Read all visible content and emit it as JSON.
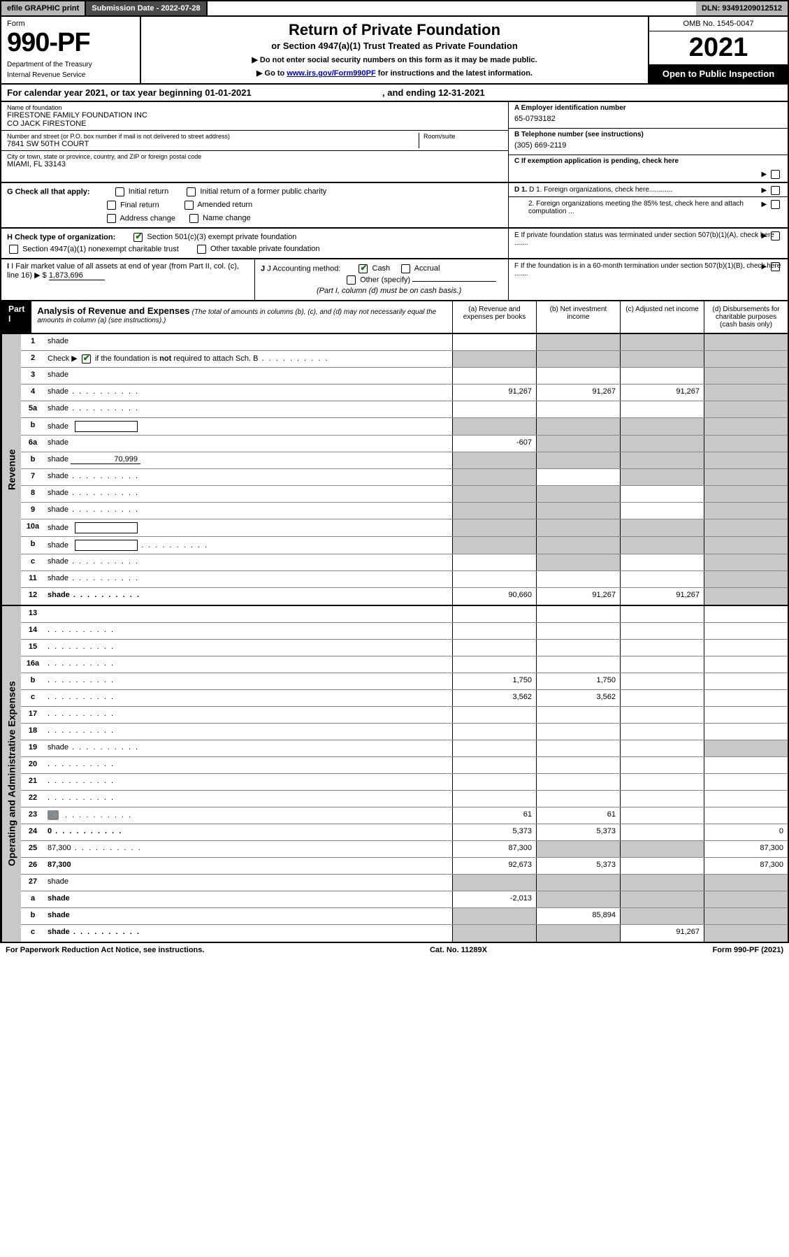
{
  "colors": {
    "black": "#000000",
    "white": "#ffffff",
    "grey_header": "#b8b8b8",
    "grey_dark": "#4a4a4a",
    "grey_shade": "#c8c8c8",
    "link": "#0000cc",
    "check_green": "#0a7a0a"
  },
  "topbar": {
    "efile": "efile GRAPHIC print",
    "submission": "Submission Date - 2022-07-28",
    "dln": "DLN: 93491209012512"
  },
  "header": {
    "form_label": "Form",
    "form_number": "990-PF",
    "dept1": "Department of the Treasury",
    "dept2": "Internal Revenue Service",
    "title": "Return of Private Foundation",
    "subtitle": "or Section 4947(a)(1) Trust Treated as Private Foundation",
    "note1": "▶ Do not enter social security numbers on this form as it may be made public.",
    "note2_pre": "▶ Go to ",
    "note2_link": "www.irs.gov/Form990PF",
    "note2_post": " for instructions and the latest information.",
    "omb": "OMB No. 1545-0047",
    "year": "2021",
    "open": "Open to Public Inspection"
  },
  "calyear": {
    "text_pre": "For calendar year 2021, or tax year beginning ",
    "begin": "01-01-2021",
    "mid": " , and ending ",
    "end": "12-31-2021"
  },
  "info": {
    "name_label": "Name of foundation",
    "name1": "FIRESTONE FAMILY FOUNDATION INC",
    "name2": "CO JACK FIRESTONE",
    "addr_label": "Number and street (or P.O. box number if mail is not delivered to street address)",
    "room_label": "Room/suite",
    "addr": "7841 SW 50TH COURT",
    "city_label": "City or town, state or province, country, and ZIP or foreign postal code",
    "city": "MIAMI, FL  33143",
    "a_label": "A Employer identification number",
    "a_val": "65-0793182",
    "b_label": "B Telephone number (see instructions)",
    "b_val": "(305) 669-2119",
    "c_label": "C If exemption application is pending, check here",
    "d1": "D 1. Foreign organizations, check here............",
    "d2": "2. Foreign organizations meeting the 85% test, check here and attach computation ...",
    "e": "E  If private foundation status was terminated under section 507(b)(1)(A), check here .......",
    "f": "F  If the foundation is in a 60-month termination under section 507(b)(1)(B), check here .......",
    "g_label": "G Check all that apply:",
    "g_opts": [
      "Initial return",
      "Initial return of a former public charity",
      "Final return",
      "Amended return",
      "Address change",
      "Name change"
    ],
    "h_label": "H Check type of organization:",
    "h_opt1": "Section 501(c)(3) exempt private foundation",
    "h_opt2": "Section 4947(a)(1) nonexempt charitable trust",
    "h_opt3": "Other taxable private foundation",
    "i_label": "I Fair market value of all assets at end of year (from Part II, col. (c), line 16) ▶ $",
    "i_val": "1,873,696",
    "j_label": "J Accounting method:",
    "j_cash": "Cash",
    "j_accrual": "Accrual",
    "j_other": "Other (specify)",
    "j_note": "(Part I, column (d) must be on cash basis.)"
  },
  "part1": {
    "label": "Part I",
    "title": "Analysis of Revenue and Expenses",
    "title_note": "(The total of amounts in columns (b), (c), and (d) may not necessarily equal the amounts in column (a) (see instructions).)",
    "col_a": "(a)  Revenue and expenses per books",
    "col_b": "(b)  Net investment income",
    "col_c": "(c)  Adjusted net income",
    "col_d": "(d)  Disbursements for charitable purposes (cash basis only)"
  },
  "sides": {
    "revenue": "Revenue",
    "expenses": "Operating and Administrative Expenses"
  },
  "lines": [
    {
      "n": "1",
      "d": "shade",
      "a": "",
      "b": "shade",
      "c": "shade"
    },
    {
      "n": "2",
      "d": "shade",
      "dots": true,
      "a": "shade",
      "b": "shade",
      "c": "shade",
      "bold_not": true
    },
    {
      "n": "3",
      "d": "shade",
      "a": "",
      "b": "",
      "c": ""
    },
    {
      "n": "4",
      "d": "shade",
      "dots": true,
      "a": "91,267",
      "b": "91,267",
      "c": "91,267"
    },
    {
      "n": "5a",
      "d": "shade",
      "dots": true,
      "a": "",
      "b": "",
      "c": ""
    },
    {
      "n": "b",
      "d": "shade",
      "box": true,
      "a": "shade",
      "b": "shade",
      "c": "shade"
    },
    {
      "n": "6a",
      "d": "shade",
      "a": "-607",
      "b": "shade",
      "c": "shade"
    },
    {
      "n": "b",
      "d": "shade",
      "inline_val": "70,999",
      "a": "shade",
      "b": "shade",
      "c": "shade"
    },
    {
      "n": "7",
      "d": "shade",
      "dots": true,
      "a": "shade",
      "b": "",
      "c": "shade"
    },
    {
      "n": "8",
      "d": "shade",
      "dots": true,
      "a": "shade",
      "b": "shade",
      "c": ""
    },
    {
      "n": "9",
      "d": "shade",
      "dots": true,
      "a": "shade",
      "b": "shade",
      "c": ""
    },
    {
      "n": "10a",
      "d": "shade",
      "box": true,
      "a": "shade",
      "b": "shade",
      "c": "shade"
    },
    {
      "n": "b",
      "d": "shade",
      "dots": true,
      "box": true,
      "a": "shade",
      "b": "shade",
      "c": "shade"
    },
    {
      "n": "c",
      "d": "shade",
      "dots": true,
      "a": "",
      "b": "shade",
      "c": ""
    },
    {
      "n": "11",
      "d": "shade",
      "dots": true,
      "a": "",
      "b": "",
      "c": ""
    },
    {
      "n": "12",
      "d": "shade",
      "dots": true,
      "bold": true,
      "a": "90,660",
      "b": "91,267",
      "c": "91,267"
    }
  ],
  "exp_lines": [
    {
      "n": "13",
      "d": "",
      "a": "",
      "b": "",
      "c": ""
    },
    {
      "n": "14",
      "d": "",
      "dots": true,
      "a": "",
      "b": "",
      "c": ""
    },
    {
      "n": "15",
      "d": "",
      "dots": true,
      "a": "",
      "b": "",
      "c": ""
    },
    {
      "n": "16a",
      "d": "",
      "dots": true,
      "a": "",
      "b": "",
      "c": ""
    },
    {
      "n": "b",
      "d": "",
      "dots": true,
      "a": "1,750",
      "b": "1,750",
      "c": ""
    },
    {
      "n": "c",
      "d": "",
      "dots": true,
      "a": "3,562",
      "b": "3,562",
      "c": ""
    },
    {
      "n": "17",
      "d": "",
      "dots": true,
      "a": "",
      "b": "",
      "c": ""
    },
    {
      "n": "18",
      "d": "",
      "dots": true,
      "a": "",
      "b": "",
      "c": ""
    },
    {
      "n": "19",
      "d": "shade",
      "dots": true,
      "a": "",
      "b": "",
      "c": ""
    },
    {
      "n": "20",
      "d": "",
      "dots": true,
      "a": "",
      "b": "",
      "c": ""
    },
    {
      "n": "21",
      "d": "",
      "dots": true,
      "a": "",
      "b": "",
      "c": ""
    },
    {
      "n": "22",
      "d": "",
      "dots": true,
      "a": "",
      "b": "",
      "c": ""
    },
    {
      "n": "23",
      "d": "",
      "dots": true,
      "icn": true,
      "a": "61",
      "b": "61",
      "c": ""
    },
    {
      "n": "24",
      "d": "0",
      "dots": true,
      "bold": true,
      "a": "5,373",
      "b": "5,373",
      "c": ""
    },
    {
      "n": "25",
      "d": "87,300",
      "dots": true,
      "a": "87,300",
      "b": "shade",
      "c": "shade"
    },
    {
      "n": "26",
      "d": "87,300",
      "bold": true,
      "a": "92,673",
      "b": "5,373",
      "c": ""
    },
    {
      "n": "27",
      "d": "shade",
      "a": "shade",
      "b": "shade",
      "c": "shade"
    },
    {
      "n": "a",
      "d": "shade",
      "bold": true,
      "a": "-2,013",
      "b": "shade",
      "c": "shade"
    },
    {
      "n": "b",
      "d": "shade",
      "bold": true,
      "a": "shade",
      "b": "85,894",
      "c": "shade"
    },
    {
      "n": "c",
      "d": "shade",
      "dots": true,
      "bold": true,
      "a": "shade",
      "b": "shade",
      "c": "91,267"
    }
  ],
  "footer": {
    "left": "For Paperwork Reduction Act Notice, see instructions.",
    "mid": "Cat. No. 11289X",
    "right": "Form 990-PF (2021)"
  }
}
